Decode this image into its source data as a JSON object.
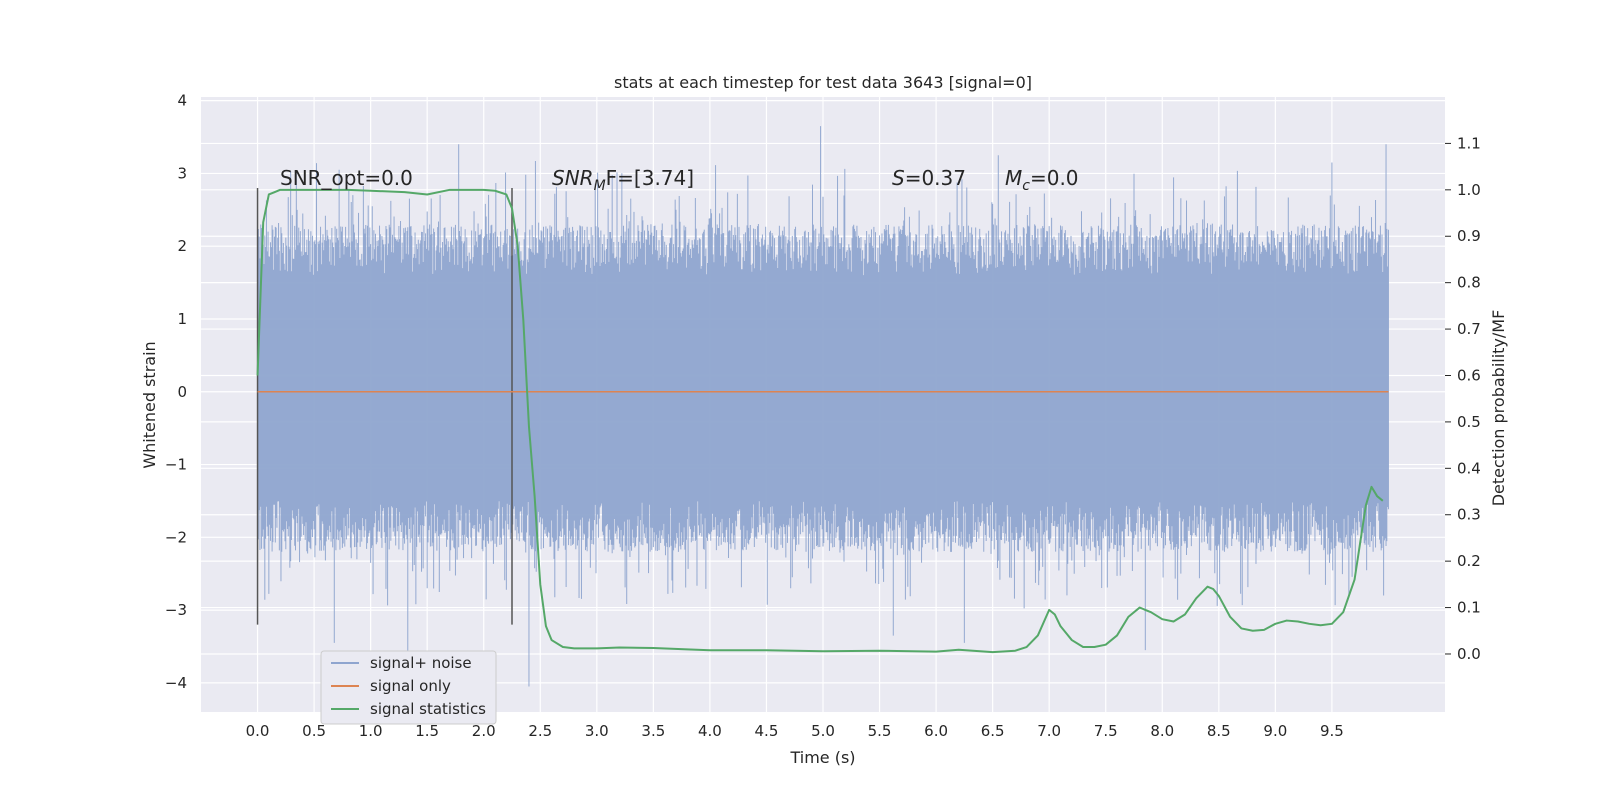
{
  "chart_data": {
    "type": "line",
    "title": "stats at each timestep for test data 3643 [signal=0]",
    "xlabel": "Time (s)",
    "ylabel_left": "Whitened strain",
    "ylabel_right": "Detection probability/MF",
    "xlim": [
      -0.5,
      10.5
    ],
    "ylim_left": [
      -4.4,
      4.05
    ],
    "ylim_right": [
      -0.125,
      1.2
    ],
    "x_ticks": [
      "0.0",
      "0.5",
      "1.0",
      "1.5",
      "2.0",
      "2.5",
      "3.0",
      "3.5",
      "4.0",
      "4.5",
      "5.0",
      "5.5",
      "6.0",
      "6.5",
      "7.0",
      "7.5",
      "8.0",
      "8.5",
      "9.0",
      "9.5"
    ],
    "y_ticks_left": [
      "4",
      "3",
      "2",
      "1",
      "0",
      "−1",
      "−2",
      "−3",
      "−4"
    ],
    "y_ticks_right": [
      "1.1",
      "1.0",
      "0.9",
      "0.8",
      "0.7",
      "0.6",
      "0.5",
      "0.4",
      "0.3",
      "0.2",
      "0.1",
      "0.0"
    ],
    "grid": true,
    "legend_position": "lower-left",
    "annotations": {
      "snr_opt": "SNR_opt=0.0",
      "snr_mf_main": "SNR",
      "snr_mf_sub": "M",
      "snr_mf_rest": "F=[3.74]",
      "s_label": "S",
      "s_value": "=0.37",
      "mc_label": "M",
      "mc_sub": "c",
      "mc_value": "=0.0"
    },
    "window_markers": {
      "x": [
        0.0,
        2.25
      ],
      "ymin": -3.2,
      "ymax": 2.8
    },
    "series": [
      {
        "name": "signal+ noise",
        "axis": "left",
        "color": "#8fa5cf",
        "description_values": {
          "x_range": [
            0.0,
            10.0
          ],
          "typical_upper": [
            1.6,
            2.3
          ],
          "typical_lower": [
            -1.5,
            -2.2
          ],
          "peaks": [
            {
              "x": 1.78,
              "y": 3.4
            },
            {
              "x": 4.98,
              "y": 3.65
            },
            {
              "x": 9.98,
              "y": 3.4
            },
            {
              "x": 6.55,
              "y": 3.25
            },
            {
              "x": 9.5,
              "y": 3.15
            },
            {
              "x": 0.72,
              "y": 3.05
            },
            {
              "x": 2.4,
              "y": -4.05
            },
            {
              "x": 1.33,
              "y": -3.75
            },
            {
              "x": 0.68,
              "y": -3.45
            },
            {
              "x": 6.25,
              "y": -3.45
            },
            {
              "x": 7.85,
              "y": -3.55
            },
            {
              "x": 5.62,
              "y": -3.35
            }
          ]
        }
      },
      {
        "name": "signal only",
        "axis": "left",
        "color": "#dd8452",
        "x": [
          0.0,
          10.0
        ],
        "y": [
          0.0,
          0.0
        ]
      },
      {
        "name": "signal statistics",
        "axis": "right",
        "color": "#55a868",
        "x": [
          0.0,
          0.05,
          0.1,
          0.15,
          0.2,
          0.3,
          0.5,
          0.8,
          1.0,
          1.3,
          1.5,
          1.7,
          2.0,
          2.1,
          2.2,
          2.25,
          2.3,
          2.35,
          2.4,
          2.45,
          2.5,
          2.55,
          2.6,
          2.7,
          2.8,
          3.0,
          3.2,
          3.5,
          3.8,
          4.0,
          4.5,
          5.0,
          5.5,
          6.0,
          6.2,
          6.5,
          6.7,
          6.8,
          6.9,
          7.0,
          7.05,
          7.1,
          7.2,
          7.3,
          7.4,
          7.5,
          7.6,
          7.7,
          7.8,
          7.85,
          7.9,
          8.0,
          8.1,
          8.2,
          8.3,
          8.4,
          8.45,
          8.5,
          8.6,
          8.7,
          8.8,
          8.9,
          9.0,
          9.1,
          9.2,
          9.3,
          9.4,
          9.5,
          9.6,
          9.7,
          9.8,
          9.85,
          9.9,
          9.95
        ],
        "y": [
          0.6,
          0.93,
          0.99,
          0.995,
          1.0,
          1.0,
          1.0,
          1.0,
          0.998,
          0.995,
          0.99,
          1.0,
          1.0,
          0.998,
          0.99,
          0.96,
          0.88,
          0.72,
          0.49,
          0.34,
          0.15,
          0.06,
          0.03,
          0.015,
          0.012,
          0.012,
          0.014,
          0.013,
          0.01,
          0.008,
          0.008,
          0.006,
          0.007,
          0.005,
          0.009,
          0.004,
          0.007,
          0.015,
          0.04,
          0.095,
          0.085,
          0.06,
          0.03,
          0.015,
          0.015,
          0.02,
          0.04,
          0.08,
          0.1,
          0.095,
          0.09,
          0.075,
          0.07,
          0.085,
          0.12,
          0.145,
          0.14,
          0.125,
          0.08,
          0.055,
          0.05,
          0.052,
          0.065,
          0.072,
          0.07,
          0.065,
          0.062,
          0.065,
          0.09,
          0.16,
          0.32,
          0.36,
          0.34,
          0.33
        ]
      }
    ]
  }
}
